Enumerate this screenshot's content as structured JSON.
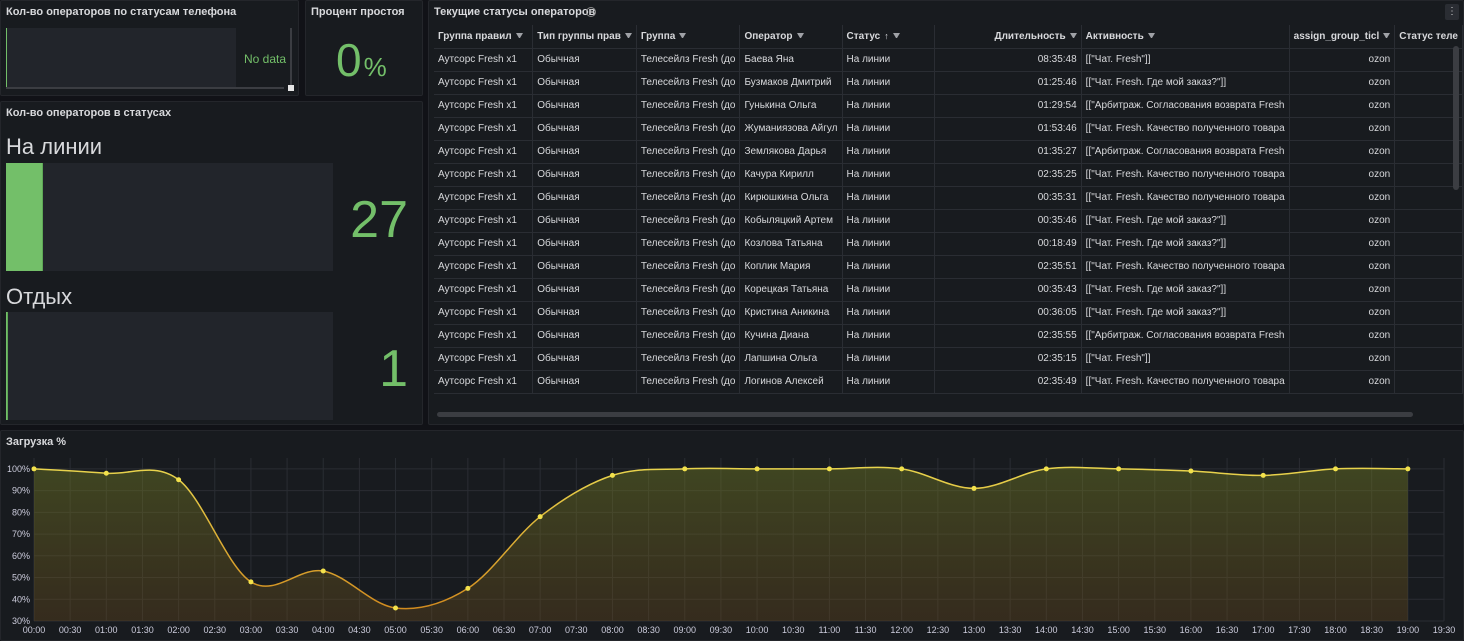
{
  "panels": {
    "phone_status": {
      "title": "Кол-во операторов по статусам телефона",
      "no_data": "No data"
    },
    "idle_percent": {
      "title": "Процент простоя",
      "value": "0",
      "unit": "%"
    },
    "status_counts": {
      "title": "Кол-во операторов в статусах",
      "items": [
        {
          "label": "На линии",
          "value": "27",
          "fill": 0.11
        },
        {
          "label": "Отдых",
          "value": "1",
          "fill": 0.004
        }
      ]
    },
    "current_statuses": {
      "title": "Текущие статусы операторов",
      "columns": [
        "Группа правил",
        "Тип группы прав",
        "Группа",
        "Оператор",
        "Статус",
        "Длительность",
        "Активность",
        "assign_group_ticl",
        "Статус теле"
      ],
      "rows": [
        [
          "Аутсорс Fresh x1",
          "Обычная",
          "Телесейлз Fresh (до",
          "Баева Яна",
          "На линии",
          "08:35:48",
          "[[\"Чат. Fresh\"]]",
          "ozon"
        ],
        [
          "Аутсорс Fresh x1",
          "Обычная",
          "Телесейлз Fresh (до",
          "Бузмаков Дмитрий",
          "На линии",
          "01:25:46",
          "[[\"Чат. Fresh. Где мой заказ?\"]]",
          "ozon"
        ],
        [
          "Аутсорс Fresh x1",
          "Обычная",
          "Телесейлз Fresh (до",
          "Гунькина Ольга",
          "На линии",
          "01:29:54",
          "[[\"Арбитраж. Согласования возврата Fresh",
          "ozon"
        ],
        [
          "Аутсорс Fresh x1",
          "Обычная",
          "Телесейлз Fresh (до",
          "Жуманиязова Айгул",
          "На линии",
          "01:53:46",
          "[[\"Чат. Fresh. Качество полученного товара",
          "ozon"
        ],
        [
          "Аутсорс Fresh x1",
          "Обычная",
          "Телесейлз Fresh (до",
          "Землякова Дарья",
          "На линии",
          "01:35:27",
          "[[\"Арбитраж. Согласования возврата Fresh",
          "ozon"
        ],
        [
          "Аутсорс Fresh x1",
          "Обычная",
          "Телесейлз Fresh (до",
          "Качура Кирилл",
          "На линии",
          "02:35:25",
          "[[\"Чат. Fresh. Качество полученного товара",
          "ozon"
        ],
        [
          "Аутсорс Fresh x1",
          "Обычная",
          "Телесейлз Fresh (до",
          "Кирюшкина Ольга",
          "На линии",
          "00:35:31",
          "[[\"Чат. Fresh. Качество полученного товара",
          "ozon"
        ],
        [
          "Аутсорс Fresh x1",
          "Обычная",
          "Телесейлз Fresh (до",
          "Кобыляцкий Артем",
          "На линии",
          "00:35:46",
          "[[\"Чат. Fresh. Где мой заказ?\"]]",
          "ozon"
        ],
        [
          "Аутсорс Fresh x1",
          "Обычная",
          "Телесейлз Fresh (до",
          "Козлова Татьяна",
          "На линии",
          "00:18:49",
          "[[\"Чат. Fresh. Где мой заказ?\"]]",
          "ozon"
        ],
        [
          "Аутсорс Fresh x1",
          "Обычная",
          "Телесейлз Fresh (до",
          "Коплик Мария",
          "На линии",
          "02:35:51",
          "[[\"Чат. Fresh. Качество полученного товара",
          "ozon"
        ],
        [
          "Аутсорс Fresh x1",
          "Обычная",
          "Телесейлз Fresh (до",
          "Корецкая Татьяна",
          "На линии",
          "00:35:43",
          "[[\"Чат. Fresh. Где мой заказ?\"]]",
          "ozon"
        ],
        [
          "Аутсорс Fresh x1",
          "Обычная",
          "Телесейлз Fresh (до",
          "Кристина Аникина",
          "На линии",
          "00:36:05",
          "[[\"Чат. Fresh. Где мой заказ?\"]]",
          "ozon"
        ],
        [
          "Аутсорс Fresh x1",
          "Обычная",
          "Телесейлз Fresh (до",
          "Кучина Диана",
          "На линии",
          "02:35:55",
          "[[\"Арбитраж. Согласования возврата Fresh",
          "ozon"
        ],
        [
          "Аутсорс Fresh x1",
          "Обычная",
          "Телесейлз Fresh (до",
          "Лапшина Ольга",
          "На линии",
          "02:35:15",
          "[[\"Чат. Fresh\"]]",
          "ozon"
        ],
        [
          "Аутсорс Fresh x1",
          "Обычная",
          "Телесейлз Fresh (до",
          "Логинов Алексей",
          "На линии",
          "02:35:49",
          "[[\"Чат. Fresh. Качество полученного товара",
          "ozon"
        ]
      ]
    },
    "load": {
      "title": "Загрузка %"
    }
  },
  "chart_data": {
    "type": "line",
    "title": "Загрузка %",
    "x": [
      "00:00",
      "01:00",
      "02:00",
      "03:00",
      "04:00",
      "05:00",
      "06:00",
      "07:00",
      "08:00",
      "09:00",
      "10:00",
      "11:00",
      "12:00",
      "13:00",
      "14:00",
      "15:00",
      "16:00",
      "17:00",
      "18:00",
      "19:00"
    ],
    "series": [
      {
        "values": [
          100,
          98,
          95,
          48,
          53,
          36,
          45,
          78,
          97,
          100,
          100,
          100,
          100,
          91,
          100,
          100,
          99,
          97,
          100,
          100
        ]
      }
    ],
    "xticks": [
      "00:00",
      "00:30",
      "01:00",
      "01:30",
      "02:00",
      "02:30",
      "03:00",
      "03:30",
      "04:00",
      "04:30",
      "05:00",
      "05:30",
      "06:00",
      "06:30",
      "07:00",
      "07:30",
      "08:00",
      "08:30",
      "09:00",
      "09:30",
      "10:00",
      "10:30",
      "11:00",
      "11:30",
      "12:00",
      "12:30",
      "13:00",
      "13:30",
      "14:00",
      "14:30",
      "15:00",
      "15:30",
      "16:00",
      "16:30",
      "17:00",
      "17:30",
      "18:00",
      "18:30",
      "19:00",
      "19:30"
    ],
    "yticks": [
      "30%",
      "40%",
      "50%",
      "60%",
      "70%",
      "80%",
      "90%",
      "100%"
    ],
    "ylim": [
      30,
      105
    ],
    "grid": true,
    "colors": {
      "line": "#e8d44d",
      "line_low": "#d18b1f",
      "point": "#f2e14c"
    }
  }
}
